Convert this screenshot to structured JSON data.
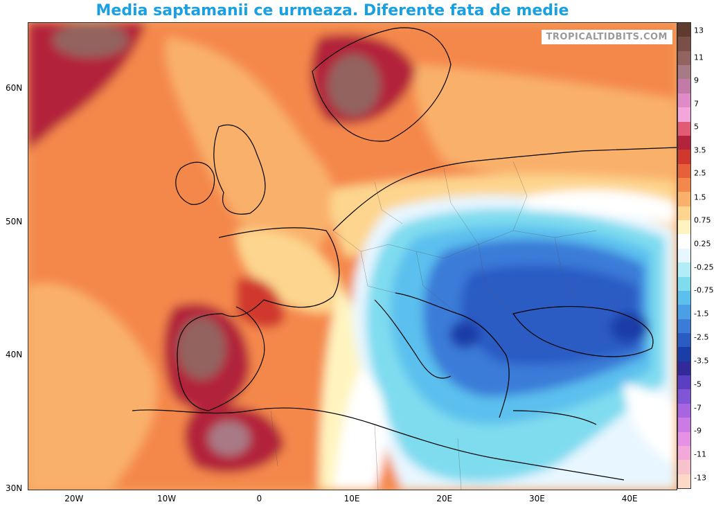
{
  "title": "Media saptamanii ce urmeaza. Diferente fata de medie",
  "branding": "TROPICALTIDBITS.COM",
  "map": {
    "lat_labels": [
      "60N",
      "50N",
      "40N",
      "30N"
    ],
    "lon_labels": [
      "20W",
      "10W",
      "0",
      "10E",
      "20E",
      "30E",
      "40E"
    ],
    "lat_values": [
      60,
      50,
      40,
      30
    ],
    "lon_values": [
      -20,
      -10,
      0,
      10,
      20,
      30,
      40
    ],
    "lat_range": [
      30,
      65
    ],
    "lon_range": [
      -25,
      45
    ]
  },
  "colorbar": {
    "labels": [
      "13",
      "11",
      "9",
      "7",
      "5",
      "3.5",
      "2.5",
      "1.5",
      "0.75",
      "0.25",
      "-0.25",
      "-0.75",
      "-1.5",
      "-2.5",
      "-3.5",
      "-5",
      "-7",
      "-9",
      "-11",
      "-13"
    ],
    "colors": [
      "#5e3b2d",
      "#7a4f49",
      "#93635f",
      "#a87a85",
      "#c47aa8",
      "#e08bc8",
      "#f3a6da",
      "#e35a74",
      "#b3233b",
      "#d0382e",
      "#e8603a",
      "#f4884c",
      "#f9b06a",
      "#fdd58e",
      "#fff4bf",
      "#ffffff",
      "#e8f6ff",
      "#b2ecf6",
      "#7fdcef",
      "#5cc0ee",
      "#4a9fe6",
      "#3a7cd8",
      "#2b5cc4",
      "#1a3ea8",
      "#322a9a",
      "#5a3fc2",
      "#8055d6",
      "#a865e0",
      "#cc7ae4",
      "#e690e6",
      "#f2a8d8",
      "#f8c2cc",
      "#fbd8c8"
    ]
  }
}
